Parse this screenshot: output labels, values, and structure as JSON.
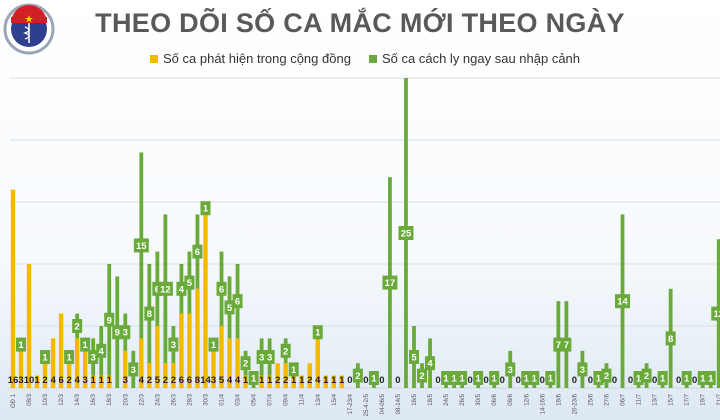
{
  "logo": {
    "text_top": "BỘ Y TẾ",
    "text_bottom": "MINISTRY OF HEALTH"
  },
  "chart_data": {
    "type": "bar",
    "stacked": true,
    "title": "THEO DÕI SỐ CA MẮC MỚI THEO NGÀY",
    "legend_position": "top",
    "grid": true,
    "ylim": [
      0,
      25
    ],
    "yticks": [
      0,
      5,
      10,
      15,
      20,
      25
    ],
    "colors": {
      "community": "#f5b800",
      "quarantine": "#6aaa3a"
    },
    "categories": [
      "GĐ 1",
      "",
      "08/3",
      "",
      "10/3",
      "",
      "12/3",
      "",
      "14/3",
      "",
      "16/3",
      "",
      "18/3",
      "",
      "20/3",
      "",
      "22/3",
      "",
      "24/3",
      "",
      "26/3",
      "",
      "28/3",
      "",
      "30/3",
      "",
      "01/4",
      "",
      "03/4",
      "",
      "05/4",
      "",
      "07/4",
      "",
      "09/4",
      "",
      "11/4",
      "",
      "13/4",
      "",
      "15/4",
      "",
      "17-23/4",
      "",
      "25-4-2/5",
      "",
      "04-06/5",
      "",
      "08-14/5",
      "",
      "16/5",
      "",
      "18/5",
      "",
      "24/5",
      "",
      "26/5",
      "",
      "30/5",
      "",
      "06/6",
      "",
      "08/6",
      "",
      "12/6",
      "",
      "14-16/6",
      "",
      "18/6",
      "",
      "20-23/6",
      "",
      "25/6",
      "",
      "27/6",
      "",
      "06/7",
      "",
      "11/7",
      "",
      "13/7",
      "",
      "15/7",
      "",
      "17/7",
      "",
      "19/7",
      "",
      "21/7"
    ],
    "series": [
      {
        "name": "Số ca phát hiện trong cộng đồng",
        "values": [
          16,
          3,
          10,
          1,
          2,
          4,
          6,
          2,
          4,
          3,
          1,
          1,
          1,
          0,
          3,
          0,
          4,
          2,
          5,
          2,
          2,
          6,
          6,
          8,
          14,
          3,
          5,
          4,
          4,
          1,
          0,
          1,
          1,
          2,
          2,
          1,
          1,
          2,
          4,
          1,
          1,
          1,
          0,
          0,
          0,
          0,
          0,
          0,
          0,
          0,
          0,
          0,
          0,
          0,
          0,
          0,
          0,
          0,
          0,
          0,
          0,
          0,
          0,
          0,
          0,
          0,
          0,
          0,
          0,
          0,
          0,
          0,
          0,
          0,
          0,
          0,
          0,
          0,
          0,
          0,
          0,
          0,
          0,
          0,
          0,
          0,
          0,
          0,
          0
        ]
      },
      {
        "name": "Số ca cách ly ngay sau nhập cảnh",
        "values": [
          0,
          1,
          0,
          0,
          1,
          0,
          0,
          1,
          2,
          1,
          3,
          4,
          9,
          9,
          3,
          3,
          15,
          8,
          6,
          12,
          3,
          4,
          5,
          6,
          1,
          1,
          6,
          5,
          6,
          2,
          1,
          3,
          3,
          0,
          2,
          1,
          0,
          0,
          1,
          0,
          0,
          0,
          0,
          2,
          0,
          1,
          0,
          17,
          0,
          25,
          5,
          2,
          4,
          0,
          1,
          1,
          1,
          0,
          1,
          0,
          1,
          0,
          3,
          0,
          1,
          1,
          0,
          1,
          7,
          7,
          0,
          3,
          0,
          1,
          2,
          0,
          14,
          0,
          1,
          2,
          0,
          1,
          8,
          0,
          1,
          0,
          1,
          1,
          12
        ]
      }
    ]
  }
}
